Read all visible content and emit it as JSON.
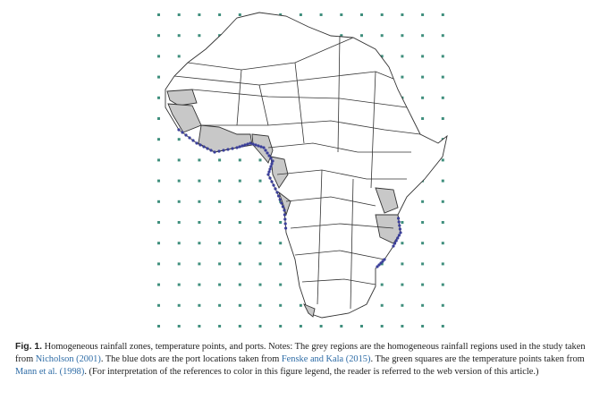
{
  "figure": {
    "label": "Fig. 1.",
    "caption": [
      "Homogeneous rainfall zones, temperature points, and ports. Notes: The grey regions are the homogeneous rainfall regions used in the study taken from ",
      "Nicholson (2001)",
      ". The blue dots are the port locations taken from ",
      "Fenske and Kala (2015)",
      ". The green squares are the temperature points taken from ",
      "Mann et al. (1998)",
      ". (For interpretation of the references to color in this figure legend, the reader is referred to the web version of this article.)"
    ]
  }
}
